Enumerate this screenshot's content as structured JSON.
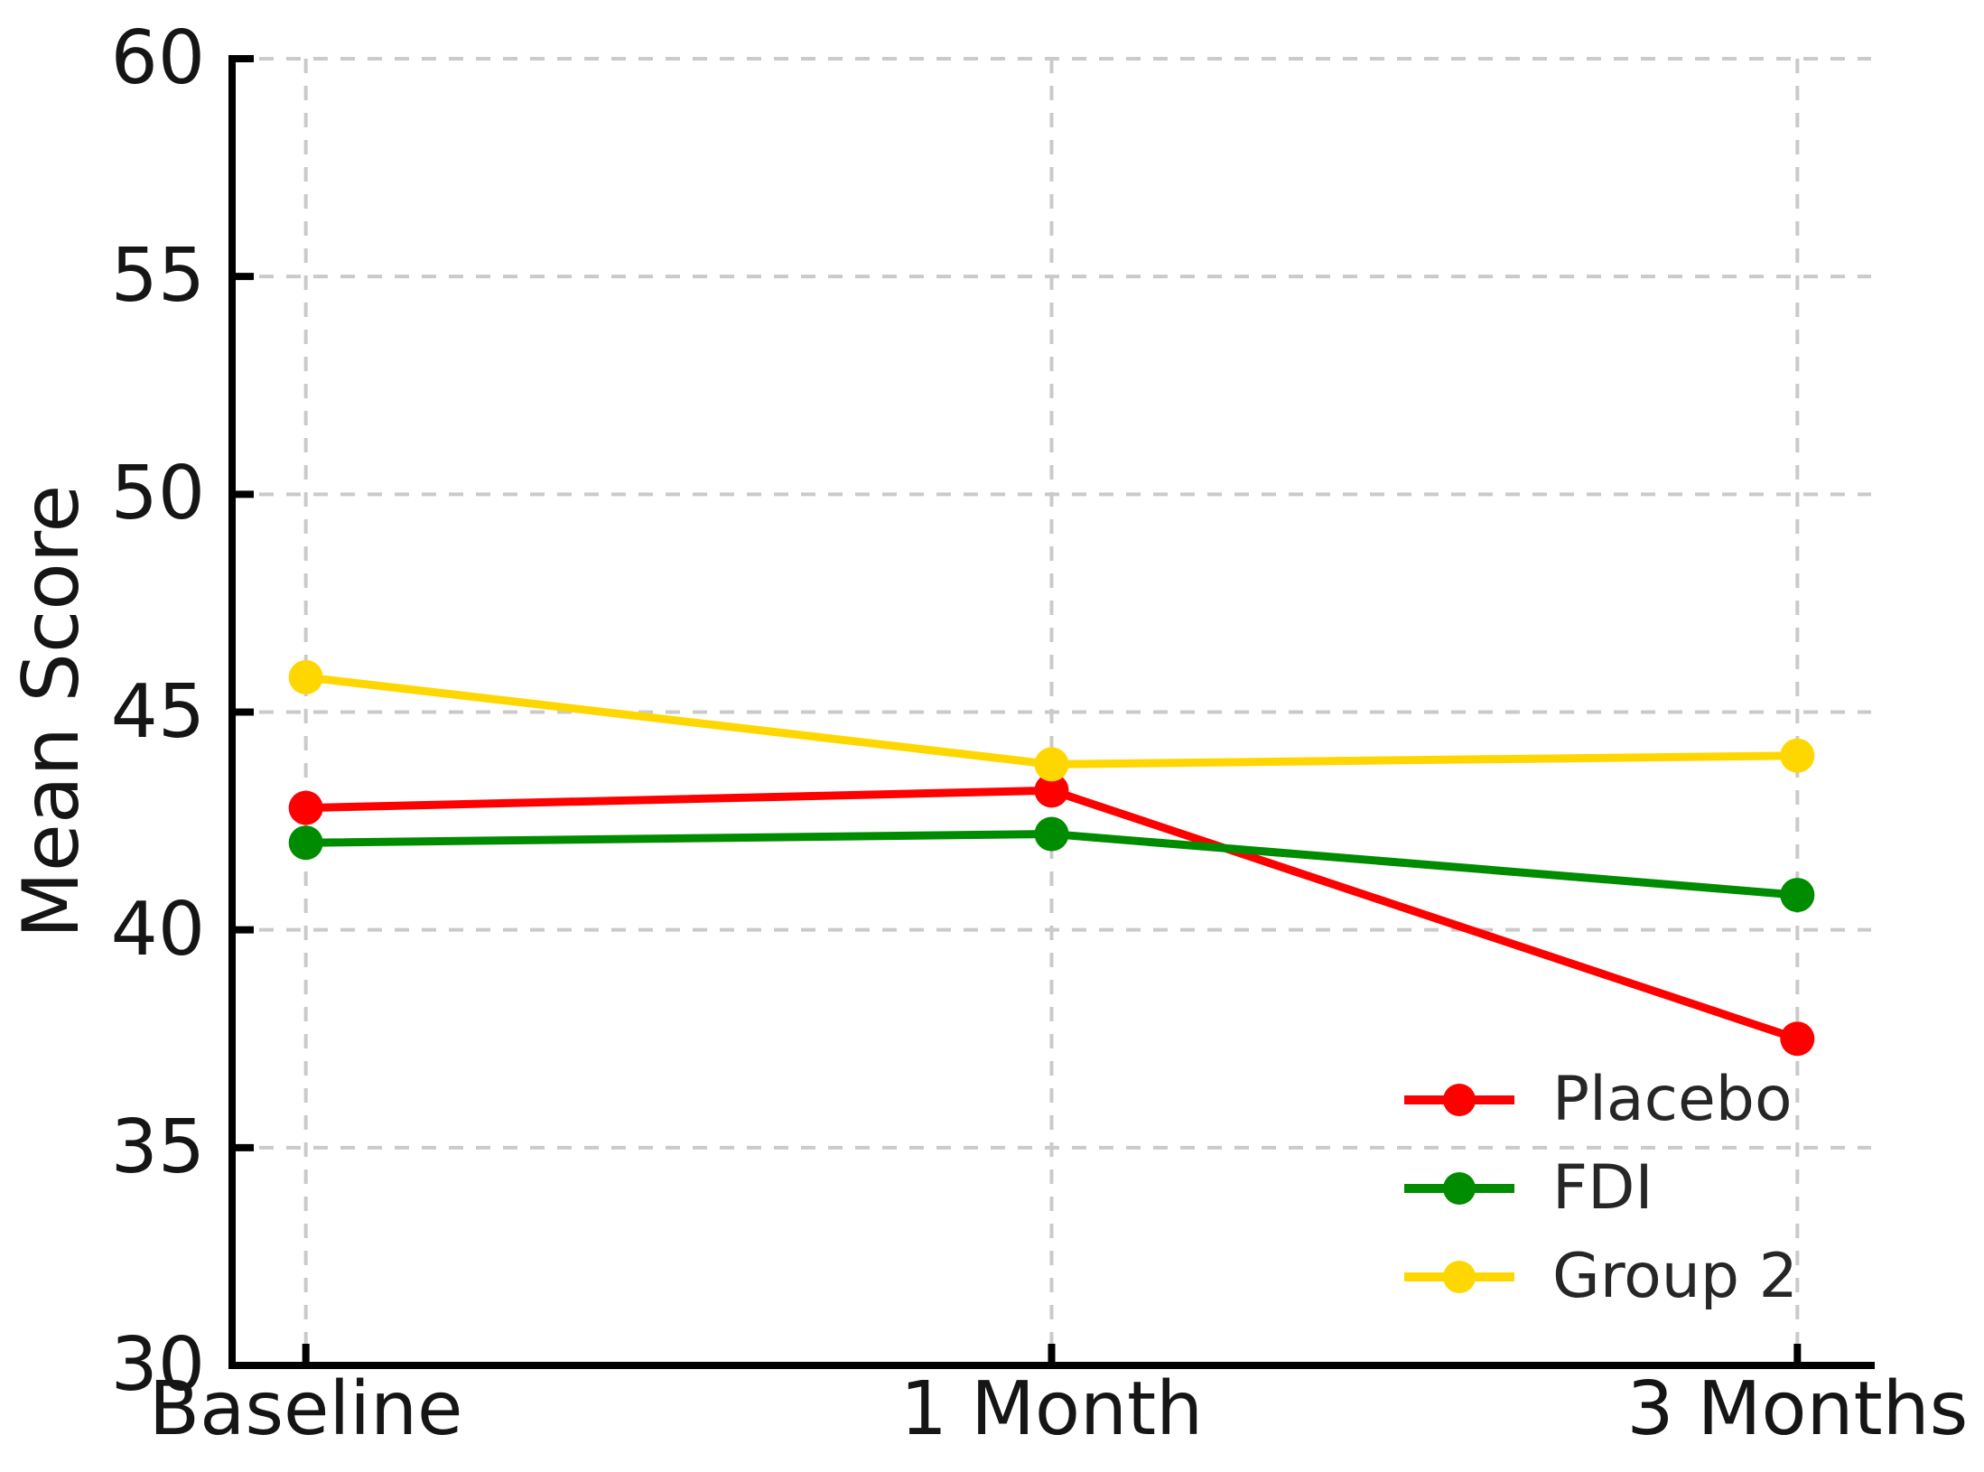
{
  "chart_data": {
    "type": "line",
    "title": "",
    "xlabel": "",
    "ylabel": "Mean Score",
    "categories": [
      "Baseline",
      "1 Month",
      "3 Months"
    ],
    "series": [
      {
        "name": "Placebo",
        "color": "#ff0000",
        "values": [
          42.8,
          43.2,
          37.5
        ]
      },
      {
        "name": "FDI",
        "color": "#008c00",
        "values": [
          42.0,
          42.2,
          40.8
        ]
      },
      {
        "name": "Group 2",
        "color": "#ffd700",
        "values": [
          45.8,
          43.8,
          44.0
        ]
      }
    ],
    "ylim": [
      30,
      60
    ],
    "yticks": [
      30,
      35,
      40,
      45,
      50,
      55,
      60
    ],
    "grid": true,
    "grid_style": "dashed",
    "tick_direction": "in",
    "legend_position": "lower right"
  },
  "colors": {
    "background": "#ffffff",
    "axis": "#000000",
    "grid": "#cacaca",
    "tick_label": "#151515",
    "legend_text": "#262626"
  }
}
